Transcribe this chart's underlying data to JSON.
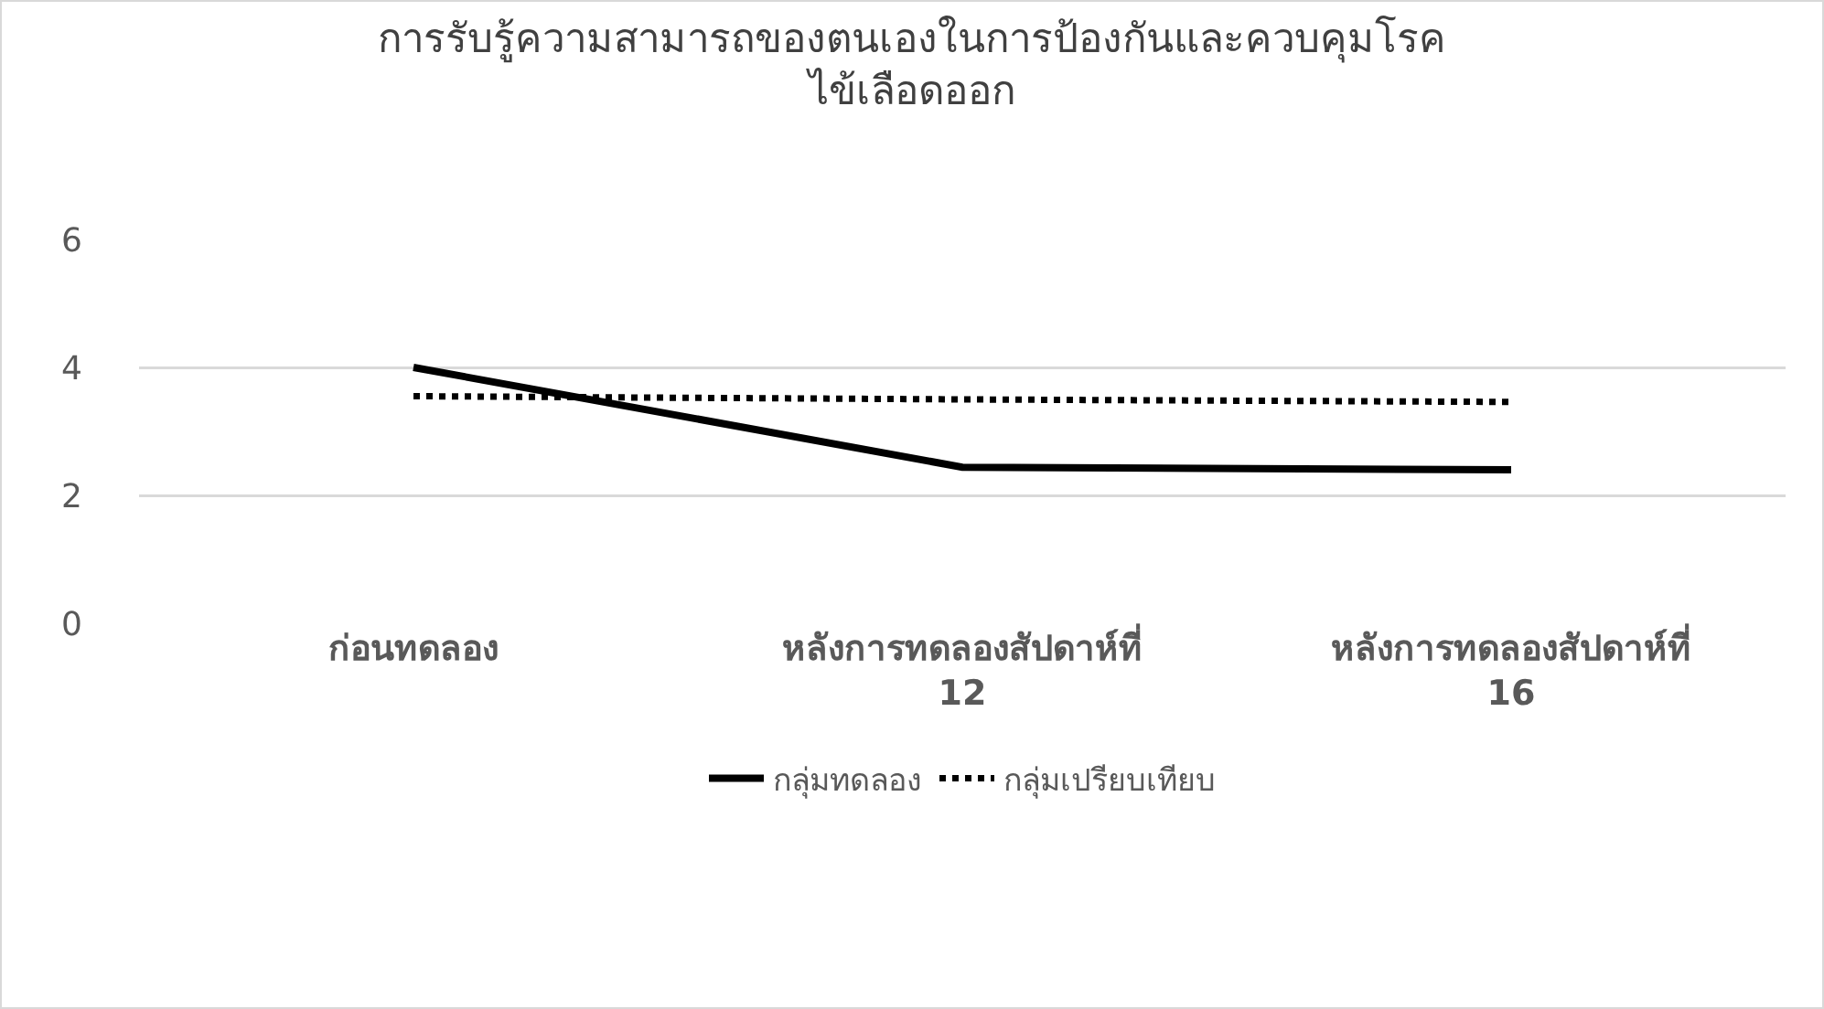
{
  "chart_data": {
    "type": "line",
    "title": "การรับรู้ความสามารถของตนเองในการป้องกันและควบคุมโรค\nไข้เลือดออก",
    "categories": [
      "ก่อนทดลอง",
      "หลังการทดลองสัปดาห์ที่\n12",
      "หลังการทดลองสัปดาห์ที่\n16"
    ],
    "series": [
      {
        "name": "กลุ่มทดลอง",
        "color": "#000000",
        "line_style": "solid",
        "values": [
          4.0,
          2.44,
          2.4
        ]
      },
      {
        "name": "กลุ่มเปรียบเทียบ",
        "color": "#000000",
        "line_style": "dotted",
        "values": [
          3.55,
          3.5,
          3.46
        ]
      }
    ],
    "ylim": [
      0,
      6
    ],
    "yticks": [
      0,
      2,
      4,
      6
    ],
    "grid": "y",
    "legend": "bottom",
    "marker": "none"
  }
}
